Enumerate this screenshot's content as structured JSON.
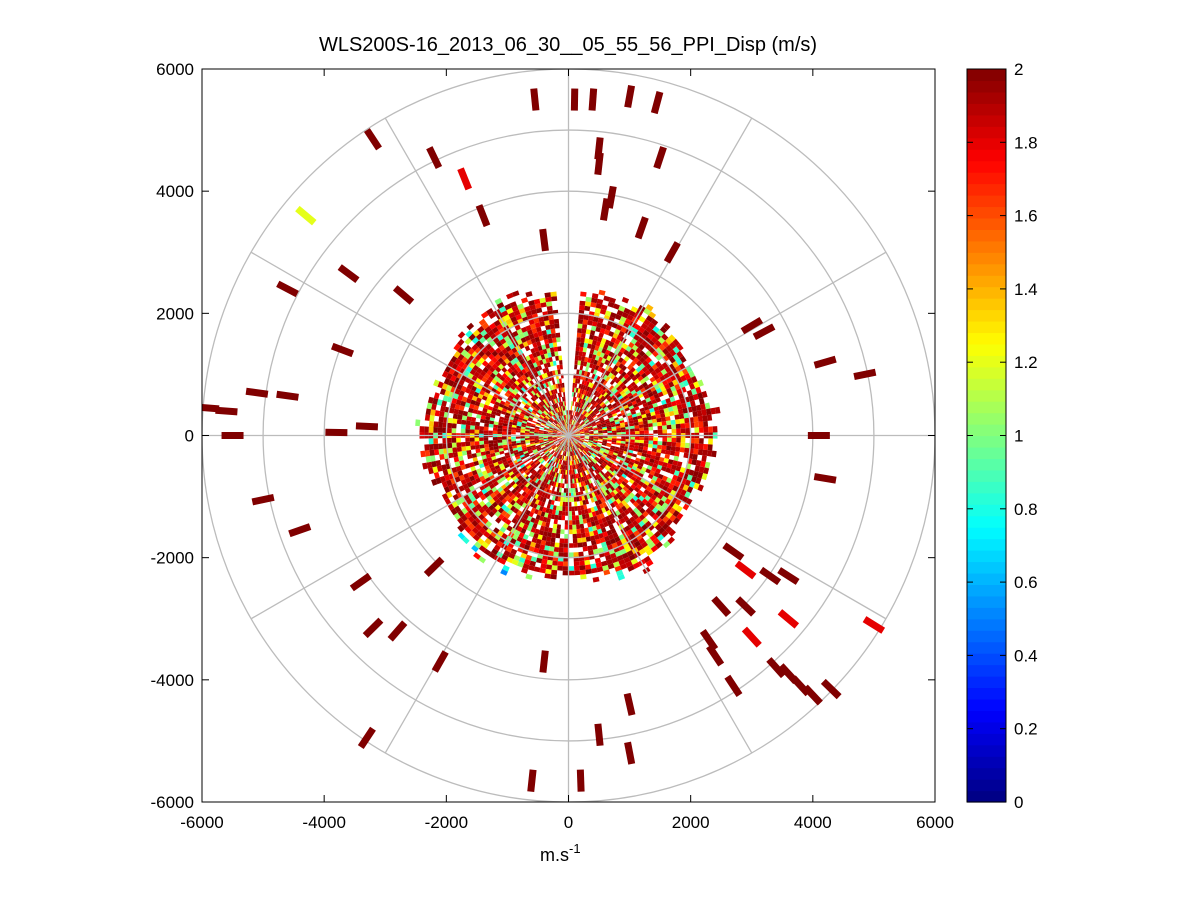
{
  "chart_data": {
    "type": "heatmap",
    "subtype": "polar-ppi-scan",
    "title": "WLS200S-16_2013_06_30__05_55_56_PPI_Disp (m/s)",
    "xlabel": "m.s",
    "xlabel_superscript": "-1",
    "ylabel": "",
    "xlim": [
      -6000,
      6000
    ],
    "ylim": [
      -6000,
      6000
    ],
    "xticks": [
      -6000,
      -4000,
      -2000,
      0,
      2000,
      4000,
      6000
    ],
    "yticks": [
      6000,
      4000,
      2000,
      0,
      -2000,
      -4000,
      -6000
    ],
    "xtick_labels": [
      "-6000",
      "-4000",
      "-2000",
      "0",
      "2000",
      "4000",
      "6000"
    ],
    "ytick_labels": [
      "6000",
      "4000",
      "2000",
      "0",
      "-2000",
      "-4000",
      "-6000"
    ],
    "polar_grid": {
      "ring_radii": [
        1000,
        2000,
        3000,
        4000,
        5000,
        6000
      ],
      "spoke_angles_deg": [
        0,
        30,
        60,
        90,
        120,
        150,
        180,
        210,
        240,
        270,
        300,
        330
      ]
    },
    "colorbar": {
      "colormap": "jet",
      "min": 0,
      "max": 2,
      "ticks": [
        2,
        1.8,
        1.6,
        1.4,
        1.2,
        1,
        0.8,
        0.6,
        0.4,
        0.2,
        0
      ],
      "tick_labels": [
        "2",
        "1.8",
        "1.6",
        "1.4",
        "1.2",
        "1",
        "0.8",
        "0.6",
        "0.4",
        "0.2",
        "0"
      ]
    },
    "dense_region": {
      "description_note": "dense returns inside ~2500 m range, values mostly 1.6-2 with scattered 0.8-1.4",
      "max_range": 2550,
      "ring_blue_range": 2400,
      "ring_blue_azimuth_span_deg": [
        150,
        250
      ]
    },
    "sparse_returns": [
      {
        "x": -550,
        "y": 5500,
        "v": 2
      },
      {
        "x": 100,
        "y": 5500,
        "v": 2
      },
      {
        "x": 400,
        "y": 5500,
        "v": 2
      },
      {
        "x": 1000,
        "y": 5550,
        "v": 2
      },
      {
        "x": 1450,
        "y": 5450,
        "v": 2
      },
      {
        "x": -3200,
        "y": 4850,
        "v": 2
      },
      {
        "x": -2200,
        "y": 4550,
        "v": 2
      },
      {
        "x": 500,
        "y": 4700,
        "v": 2
      },
      {
        "x": 1500,
        "y": 4550,
        "v": 2
      },
      {
        "x": 500,
        "y": 4450,
        "v": 2
      },
      {
        "x": -1700,
        "y": 4200,
        "v": 1.8
      },
      {
        "x": -4300,
        "y": 3600,
        "v": 1.2
      },
      {
        "x": -1400,
        "y": 3600,
        "v": 2
      },
      {
        "x": 700,
        "y": 3900,
        "v": 2
      },
      {
        "x": 600,
        "y": 3700,
        "v": 2
      },
      {
        "x": 1200,
        "y": 3400,
        "v": 2
      },
      {
        "x": -400,
        "y": 3200,
        "v": 2
      },
      {
        "x": 1700,
        "y": 3000,
        "v": 2
      },
      {
        "x": -3600,
        "y": 2650,
        "v": 2
      },
      {
        "x": -4600,
        "y": 2400,
        "v": 2
      },
      {
        "x": -2700,
        "y": 2300,
        "v": 2
      },
      {
        "x": 3000,
        "y": 1800,
        "v": 2
      },
      {
        "x": 3200,
        "y": 1700,
        "v": 2
      },
      {
        "x": -3700,
        "y": 1400,
        "v": 2
      },
      {
        "x": 4200,
        "y": 1200,
        "v": 2
      },
      {
        "x": 4850,
        "y": 1000,
        "v": 2
      },
      {
        "x": -5100,
        "y": 700,
        "v": 2
      },
      {
        "x": -4600,
        "y": 650,
        "v": 2
      },
      {
        "x": -5900,
        "y": 450,
        "v": 2
      },
      {
        "x": -5600,
        "y": 400,
        "v": 2
      },
      {
        "x": -3300,
        "y": 150,
        "v": 2
      },
      {
        "x": -3800,
        "y": 50,
        "v": 2
      },
      {
        "x": -5500,
        "y": 0,
        "v": 2
      },
      {
        "x": 4100,
        "y": 0,
        "v": 2
      },
      {
        "x": 4200,
        "y": -700,
        "v": 2
      },
      {
        "x": -5000,
        "y": -1050,
        "v": 2
      },
      {
        "x": -4400,
        "y": -1550,
        "v": 2
      },
      {
        "x": -2200,
        "y": -2150,
        "v": 2
      },
      {
        "x": 2700,
        "y": -1900,
        "v": 2
      },
      {
        "x": 2900,
        "y": -2200,
        "v": 1.8
      },
      {
        "x": 3300,
        "y": -2300,
        "v": 2
      },
      {
        "x": 3600,
        "y": -2300,
        "v": 2
      },
      {
        "x": -3400,
        "y": -2400,
        "v": 2
      },
      {
        "x": 2500,
        "y": -2800,
        "v": 2
      },
      {
        "x": 2900,
        "y": -2800,
        "v": 2
      },
      {
        "x": 3600,
        "y": -3000,
        "v": 1.8
      },
      {
        "x": 5000,
        "y": -3100,
        "v": 1.8
      },
      {
        "x": 3000,
        "y": -3300,
        "v": 1.8
      },
      {
        "x": -3200,
        "y": -3150,
        "v": 2
      },
      {
        "x": -2800,
        "y": -3200,
        "v": 2
      },
      {
        "x": 2300,
        "y": -3350,
        "v": 2
      },
      {
        "x": 2400,
        "y": -3600,
        "v": 2
      },
      {
        "x": -2100,
        "y": -3700,
        "v": 2
      },
      {
        "x": -400,
        "y": -3700,
        "v": 2
      },
      {
        "x": 3400,
        "y": -3800,
        "v": 2
      },
      {
        "x": 3600,
        "y": -3900,
        "v": 2
      },
      {
        "x": 2700,
        "y": -4100,
        "v": 2
      },
      {
        "x": 4300,
        "y": -4150,
        "v": 2
      },
      {
        "x": 3800,
        "y": -4100,
        "v": 2
      },
      {
        "x": 1000,
        "y": -4400,
        "v": 2
      },
      {
        "x": 4000,
        "y": -4250,
        "v": 2
      },
      {
        "x": -3300,
        "y": -4950,
        "v": 2
      },
      {
        "x": 500,
        "y": -4900,
        "v": 2
      },
      {
        "x": 1000,
        "y": -5200,
        "v": 2
      },
      {
        "x": -600,
        "y": -5650,
        "v": 2
      },
      {
        "x": 200,
        "y": -5650,
        "v": 2
      }
    ]
  }
}
